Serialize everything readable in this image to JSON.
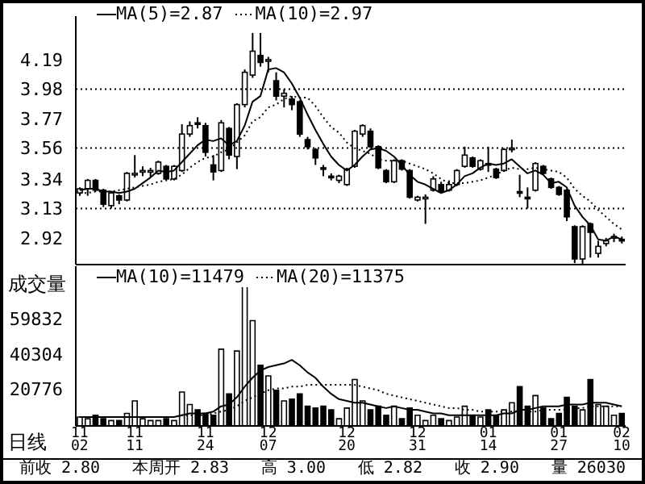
{
  "chart_data": [
    {
      "type": "candlestick",
      "tick_labels": "y",
      "legend": "top",
      "ohlc": [
        [
          3.24,
          3.28,
          3.22,
          3.27
        ],
        [
          3.27,
          3.34,
          3.22,
          3.33
        ],
        [
          3.33,
          3.34,
          3.25,
          3.26
        ],
        [
          3.26,
          3.27,
          3.14,
          3.16
        ],
        [
          3.15,
          3.25,
          3.13,
          3.24
        ],
        [
          3.22,
          3.23,
          3.16,
          3.19
        ],
        [
          3.19,
          3.39,
          3.18,
          3.38
        ],
        [
          3.37,
          3.51,
          3.35,
          3.38
        ],
        [
          3.39,
          3.43,
          3.36,
          3.4
        ],
        [
          3.4,
          3.42,
          3.35,
          3.4
        ],
        [
          3.38,
          3.47,
          3.37,
          3.46
        ],
        [
          3.43,
          3.44,
          3.33,
          3.34
        ],
        [
          3.34,
          3.44,
          3.33,
          3.43
        ],
        [
          3.4,
          3.73,
          3.39,
          3.66
        ],
        [
          3.66,
          3.75,
          3.64,
          3.72
        ],
        [
          3.74,
          3.78,
          3.7,
          3.73
        ],
        [
          3.72,
          3.74,
          3.5,
          3.53
        ],
        [
          3.44,
          3.51,
          3.33,
          3.39
        ],
        [
          3.4,
          3.76,
          3.39,
          3.74
        ],
        [
          3.7,
          3.71,
          3.48,
          3.51
        ],
        [
          3.5,
          3.88,
          3.41,
          3.87
        ],
        [
          3.87,
          4.12,
          3.85,
          4.1
        ],
        [
          4.08,
          4.38,
          4.06,
          4.25
        ],
        [
          4.22,
          4.38,
          4.14,
          4.17
        ],
        [
          4.18,
          4.21,
          4.1,
          4.19
        ],
        [
          4.04,
          4.1,
          3.9,
          3.93
        ],
        [
          3.93,
          3.98,
          3.85,
          3.95
        ],
        [
          3.91,
          3.93,
          3.83,
          3.87
        ],
        [
          3.89,
          3.9,
          3.64,
          3.66
        ],
        [
          3.62,
          3.64,
          3.55,
          3.57
        ],
        [
          3.55,
          3.56,
          3.44,
          3.49
        ],
        [
          3.42,
          3.44,
          3.36,
          3.41
        ],
        [
          3.36,
          3.38,
          3.33,
          3.35
        ],
        [
          3.33,
          3.37,
          3.31,
          3.36
        ],
        [
          3.3,
          3.42,
          3.29,
          3.41
        ],
        [
          3.43,
          3.69,
          3.42,
          3.68
        ],
        [
          3.66,
          3.73,
          3.64,
          3.72
        ],
        [
          3.68,
          3.7,
          3.56,
          3.57
        ],
        [
          3.57,
          3.58,
          3.41,
          3.42
        ],
        [
          3.4,
          3.41,
          3.31,
          3.32
        ],
        [
          3.32,
          3.48,
          3.31,
          3.47
        ],
        [
          3.47,
          3.48,
          3.4,
          3.41
        ],
        [
          3.4,
          3.41,
          3.2,
          3.21
        ],
        [
          3.19,
          3.22,
          3.18,
          3.21
        ],
        [
          3.2,
          3.23,
          3.02,
          3.21
        ],
        [
          3.26,
          3.36,
          3.25,
          3.34
        ],
        [
          3.3,
          3.32,
          3.24,
          3.25
        ],
        [
          3.26,
          3.33,
          3.25,
          3.3
        ],
        [
          3.3,
          3.41,
          3.29,
          3.4
        ],
        [
          3.43,
          3.57,
          3.42,
          3.51
        ],
        [
          3.49,
          3.5,
          3.42,
          3.43
        ],
        [
          3.41,
          3.48,
          3.4,
          3.47
        ],
        [
          3.45,
          3.57,
          3.39,
          3.45
        ],
        [
          3.41,
          3.42,
          3.34,
          3.35
        ],
        [
          3.4,
          3.56,
          3.39,
          3.55
        ],
        [
          3.55,
          3.62,
          3.53,
          3.56
        ],
        [
          3.25,
          3.37,
          3.21,
          3.24
        ],
        [
          3.21,
          3.28,
          3.13,
          3.2
        ],
        [
          3.26,
          3.46,
          3.25,
          3.45
        ],
        [
          3.43,
          3.44,
          3.37,
          3.38
        ],
        [
          3.34,
          3.35,
          3.27,
          3.28
        ],
        [
          3.28,
          3.29,
          3.22,
          3.23
        ],
        [
          3.26,
          3.27,
          3.04,
          3.07
        ],
        [
          3.0,
          3.01,
          2.74,
          2.77
        ],
        [
          2.77,
          3.01,
          2.73,
          3.0
        ],
        [
          3.02,
          3.03,
          2.78,
          2.96
        ],
        [
          2.81,
          2.9,
          2.78,
          2.86
        ],
        [
          2.88,
          2.92,
          2.86,
          2.9
        ],
        [
          2.92,
          2.95,
          2.89,
          2.93
        ],
        [
          2.91,
          2.93,
          2.88,
          2.9
        ]
      ],
      "series": [
        {
          "name": "MA(5)=2.87",
          "type": "line",
          "color": "#000000",
          "line_style": "solid",
          "values": [
            3.26,
            3.27,
            3.27,
            3.25,
            3.25,
            3.24,
            3.25,
            3.27,
            3.31,
            3.35,
            3.4,
            3.39,
            3.4,
            3.46,
            3.52,
            3.58,
            3.62,
            3.61,
            3.63,
            3.58,
            3.61,
            3.72,
            3.89,
            3.93,
            4.12,
            4.13,
            4.1,
            4.02,
            3.92,
            3.8,
            3.69,
            3.59,
            3.5,
            3.44,
            3.4,
            3.44,
            3.5,
            3.55,
            3.56,
            3.54,
            3.5,
            3.44,
            3.37,
            3.32,
            3.3,
            3.27,
            3.24,
            3.26,
            3.3,
            3.36,
            3.38,
            3.42,
            3.45,
            3.44,
            3.45,
            3.48,
            3.43,
            3.38,
            3.4,
            3.37,
            3.31,
            3.32,
            3.28,
            3.15,
            3.07,
            3.01,
            2.91,
            2.9,
            2.93,
            2.91
          ]
        },
        {
          "name": "MA(10)=2.97",
          "type": "line",
          "color": "#000000",
          "line_style": "dotted",
          "values": [
            3.24,
            3.24,
            3.25,
            3.25,
            3.25,
            3.26,
            3.27,
            3.28,
            3.29,
            3.3,
            3.32,
            3.33,
            3.34,
            3.37,
            3.42,
            3.46,
            3.49,
            3.5,
            3.53,
            3.55,
            3.6,
            3.65,
            3.75,
            3.78,
            3.85,
            3.87,
            3.91,
            3.93,
            3.92,
            3.92,
            3.86,
            3.78,
            3.71,
            3.67,
            3.6,
            3.56,
            3.54,
            3.52,
            3.48,
            3.47,
            3.47,
            3.47,
            3.45,
            3.43,
            3.41,
            3.38,
            3.34,
            3.31,
            3.31,
            3.31,
            3.32,
            3.33,
            3.35,
            3.37,
            3.4,
            3.42,
            3.41,
            3.41,
            3.42,
            3.41,
            3.4,
            3.39,
            3.35,
            3.27,
            3.22,
            3.18,
            3.12,
            3.07,
            3.02,
            2.98
          ]
        }
      ],
      "ylim": [
        2.73,
        4.5
      ],
      "yticks": [
        2.92,
        3.13,
        3.34,
        3.56,
        3.77,
        3.98,
        4.19
      ],
      "ref_lines": [
        {
          "axis": "y",
          "value": 3.98,
          "color": "#000000",
          "line_style": "dotted"
        },
        {
          "axis": "y",
          "value": 3.56,
          "color": "#000000",
          "line_style": "dotted"
        },
        {
          "axis": "y",
          "value": 3.13,
          "color": "#000000",
          "line_style": "dotted"
        }
      ]
    },
    {
      "type": "bar",
      "legend": "top",
      "ylabel": "成交量",
      "categories": [
        "11\n02",
        null,
        null,
        null,
        null,
        null,
        null,
        "11\n11",
        null,
        null,
        null,
        null,
        null,
        null,
        null,
        null,
        "11\n24",
        null,
        null,
        null,
        null,
        null,
        null,
        null,
        "12\n07",
        null,
        null,
        null,
        null,
        null,
        null,
        null,
        null,
        null,
        "12\n20",
        null,
        null,
        null,
        null,
        null,
        null,
        null,
        null,
        "12\n31",
        null,
        null,
        null,
        null,
        null,
        null,
        null,
        null,
        "01\n14",
        null,
        null,
        null,
        null,
        null,
        null,
        null,
        null,
        "01\n27",
        null,
        null,
        null,
        null,
        null,
        null,
        null,
        "02\n10"
      ],
      "series": [
        {
          "type": "bar",
          "values": [
            5000,
            4000,
            6000,
            4000,
            3000,
            3000,
            7000,
            14000,
            4000,
            3000,
            3000,
            4000,
            3000,
            19000,
            12000,
            9000,
            7000,
            6000,
            43000,
            18000,
            42000,
            79000,
            59000,
            34000,
            28000,
            20000,
            14000,
            15000,
            18000,
            11000,
            10000,
            11000,
            9000,
            4000,
            10000,
            26000,
            14000,
            9000,
            11000,
            6000,
            11000,
            4000,
            10000,
            6000,
            3000,
            6000,
            4000,
            3000,
            5000,
            11000,
            6000,
            5000,
            9000,
            6000,
            9000,
            13000,
            22000,
            11000,
            17000,
            10000,
            4000,
            7000,
            16000,
            11000,
            9000,
            26000,
            12000,
            11000,
            6000,
            7000
          ],
          "colors": [
            "#ffffff",
            "#ffffff",
            "#000000",
            "#000000",
            "#ffffff",
            "#000000",
            "#ffffff",
            "#ffffff",
            "#ffffff",
            "#ffffff",
            "#ffffff",
            "#000000",
            "#ffffff",
            "#ffffff",
            "#ffffff",
            "#000000",
            "#000000",
            "#000000",
            "#ffffff",
            "#000000",
            "#ffffff",
            "#ffffff",
            "#ffffff",
            "#000000",
            "#ffffff",
            "#000000",
            "#ffffff",
            "#000000",
            "#000000",
            "#000000",
            "#000000",
            "#000000",
            "#000000",
            "#ffffff",
            "#ffffff",
            "#ffffff",
            "#ffffff",
            "#000000",
            "#000000",
            "#000000",
            "#ffffff",
            "#000000",
            "#000000",
            "#ffffff",
            "#ffffff",
            "#ffffff",
            "#000000",
            "#ffffff",
            "#ffffff",
            "#ffffff",
            "#000000",
            "#ffffff",
            "#000000",
            "#000000",
            "#ffffff",
            "#ffffff",
            "#000000",
            "#000000",
            "#ffffff",
            "#000000",
            "#000000",
            "#000000",
            "#000000",
            "#000000",
            "#ffffff",
            "#000000",
            "#ffffff",
            "#ffffff",
            "#ffffff",
            "#000000"
          ]
        },
        {
          "name": "MA(10)=11479",
          "type": "line",
          "color": "#000000",
          "line_style": "solid",
          "values": [
            5000,
            5000,
            5000,
            5000,
            5000,
            5000,
            5000,
            5000,
            5000,
            5000,
            5000,
            5000,
            5000,
            6000,
            7000,
            7000,
            7000,
            8000,
            11000,
            12000,
            16000,
            22000,
            27000,
            31000,
            33000,
            34000,
            35000,
            37000,
            34000,
            30000,
            27000,
            22000,
            18000,
            15000,
            14000,
            13000,
            13000,
            12000,
            11000,
            10000,
            11000,
            10000,
            9000,
            9000,
            8000,
            7000,
            7000,
            6000,
            6000,
            6000,
            6000,
            6000,
            6000,
            6000,
            7000,
            7000,
            9000,
            9000,
            10000,
            11000,
            11000,
            11000,
            12000,
            12000,
            12000,
            13000,
            13000,
            13000,
            12000,
            11000
          ]
        },
        {
          "name": "MA(20)=11375",
          "type": "line",
          "color": "#000000",
          "line_style": "dotted",
          "values": [
            5000,
            5000,
            5000,
            5000,
            5000,
            5000,
            5000,
            5000,
            5000,
            5000,
            5000,
            5000,
            5000,
            6000,
            6000,
            6000,
            6000,
            7000,
            8000,
            9000,
            11000,
            14000,
            16000,
            18000,
            20000,
            21000,
            21000,
            22000,
            22000,
            23000,
            23000,
            23000,
            23000,
            23000,
            23000,
            23000,
            22000,
            21000,
            20000,
            18000,
            17000,
            16000,
            15000,
            14000,
            13000,
            12000,
            11000,
            10000,
            10000,
            9000,
            9000,
            8000,
            8000,
            8000,
            8000,
            8000,
            8000,
            8000,
            8000,
            9000,
            9000,
            9000,
            9000,
            10000,
            10000,
            11000,
            11000,
            11000,
            11000,
            11000
          ]
        }
      ],
      "ylim": [
        0,
        89500
      ],
      "yticks": [
        20776,
        40304,
        59832
      ],
      "annotations": [
        "日线",
        "前收 2.80",
        "本周开 2.83",
        "高 3.00",
        "低 2.82",
        "收 2.90",
        "量 26030"
      ]
    }
  ]
}
